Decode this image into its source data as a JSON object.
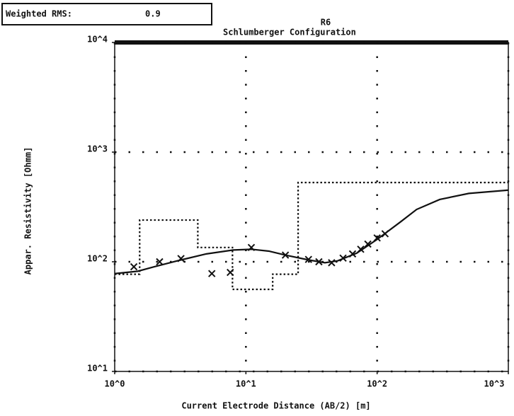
{
  "chart_data": {
    "type": "line",
    "rms_label": "Weighted RMS:",
    "rms_value": "0.9",
    "title": "R6",
    "subtitle": "Schlumberger Configuration",
    "x_label": "Current Electrode Distance (AB/2) [m]",
    "y_label": "Appar. Resistivity [Ohmm]",
    "log_x": true,
    "log_y": true,
    "grid": true,
    "xlim": [
      1,
      1000
    ],
    "ylim": [
      10,
      10000
    ],
    "xticks": [
      {
        "value": 1,
        "label": "10^0"
      },
      {
        "value": 10,
        "label": "10^1"
      },
      {
        "value": 100,
        "label": "10^2"
      },
      {
        "value": 1000,
        "label": "10^3"
      }
    ],
    "yticks": [
      {
        "value": 10,
        "label": "10^1"
      },
      {
        "value": 100,
        "label": "10^2"
      },
      {
        "value": 1000,
        "label": "10^3"
      },
      {
        "value": 10000,
        "label": "10^4"
      }
    ],
    "series": [
      {
        "style": "markers",
        "color": "#111111",
        "x": [
          1.4,
          2.2,
          3.2,
          5.5,
          7.6,
          11,
          20,
          30,
          36,
          45,
          55,
          65,
          75,
          85,
          100,
          115
        ],
        "values": [
          90,
          100,
          107,
          78,
          80,
          135,
          115,
          105,
          100,
          98,
          108,
          118,
          130,
          145,
          165,
          180
        ]
      },
      {
        "style": "solid",
        "color": "#111111",
        "x": [
          1,
          1.5,
          2,
          3,
          5,
          8,
          11,
          15,
          20,
          30,
          40,
          50,
          70,
          100,
          150,
          200,
          300,
          500,
          1000
        ],
        "values": [
          78,
          82,
          90,
          102,
          118,
          128,
          130,
          125,
          115,
          104,
          98,
          102,
          120,
          160,
          230,
          300,
          370,
          420,
          450
        ]
      },
      {
        "style": "dotted",
        "color": "#111111",
        "x": [
          1,
          1.55,
          1.55,
          4.3,
          4.3,
          7.9,
          7.9,
          16,
          16,
          25,
          25,
          1000
        ],
        "values": [
          77,
          77,
          240,
          240,
          135,
          135,
          56,
          56,
          77,
          77,
          528,
          528
        ]
      }
    ]
  }
}
